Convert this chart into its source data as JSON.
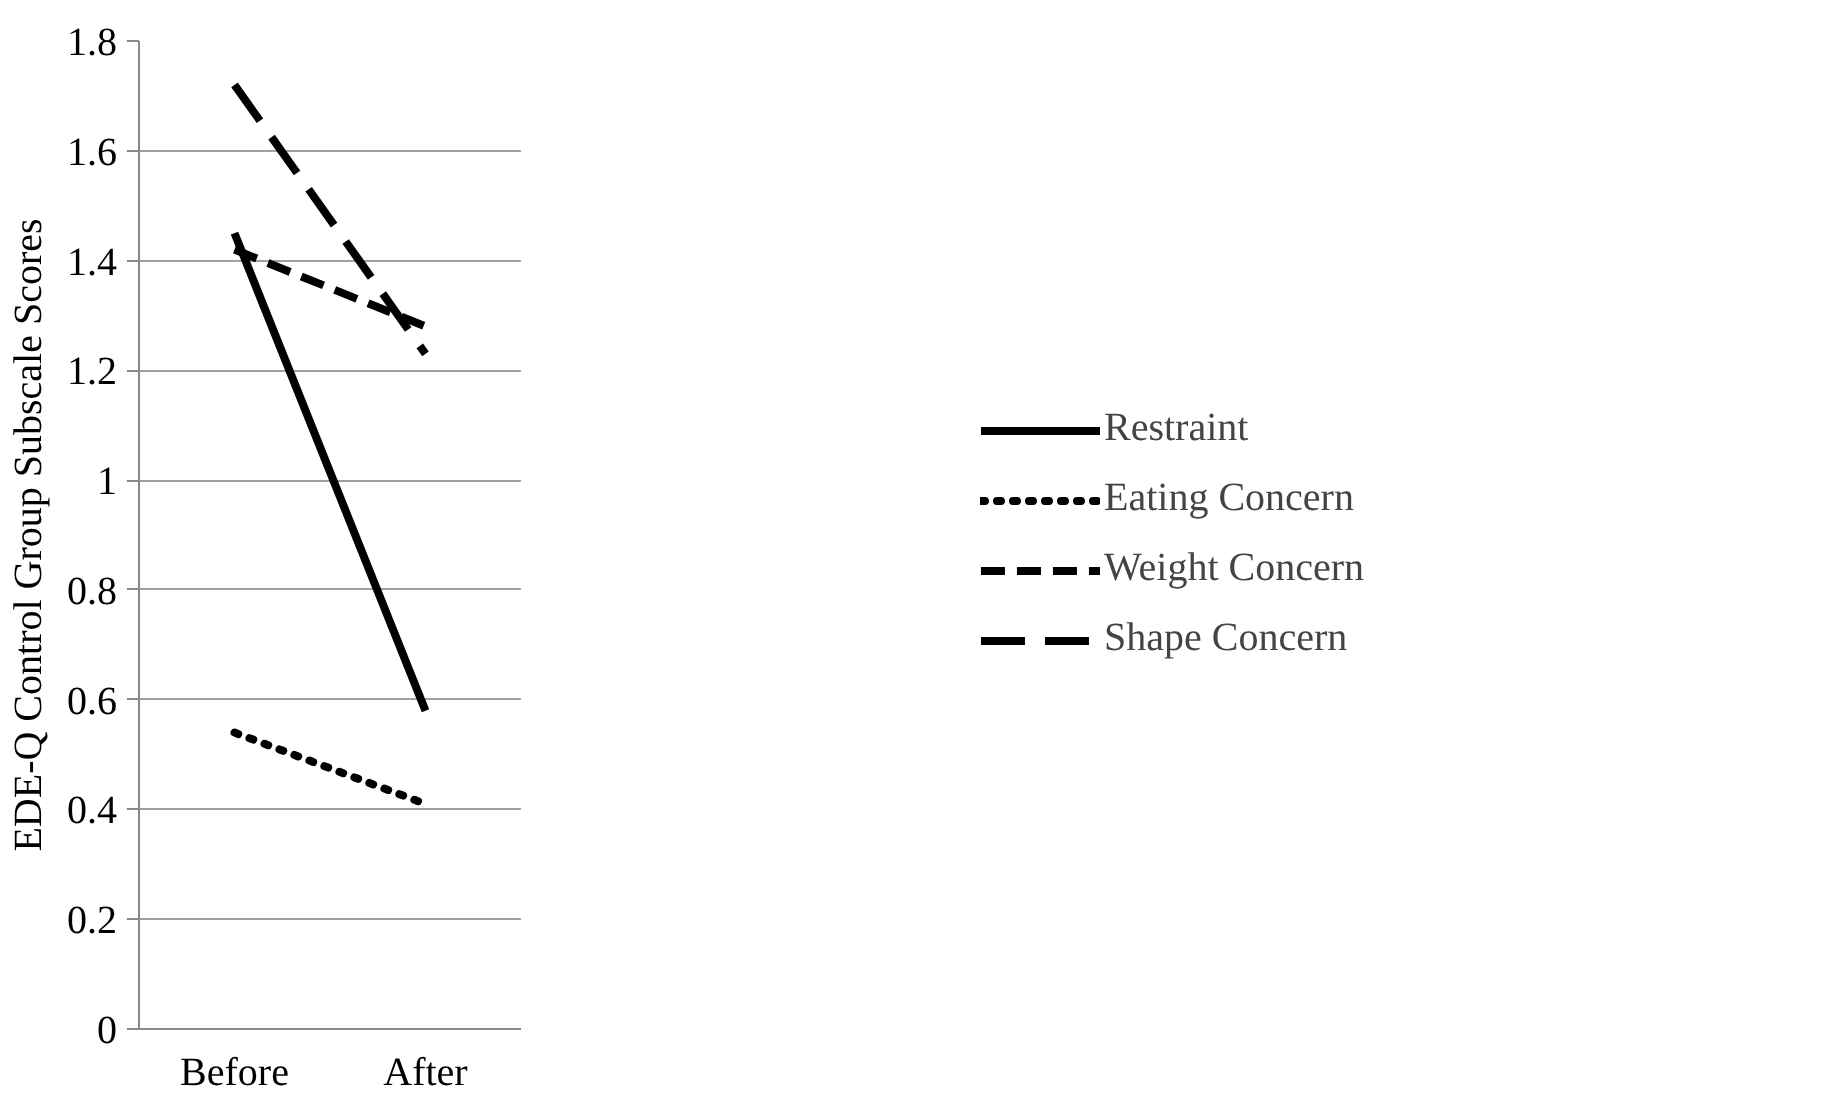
{
  "chart_data": {
    "type": "line",
    "ylabel": "EDE-Q Control Group Subscale Scores",
    "categories": [
      "Before",
      "After"
    ],
    "series": [
      {
        "name": "Restraint",
        "color": "#000000",
        "values": [
          1.45,
          0.58
        ],
        "line_style": "solid"
      },
      {
        "name": "Eating Concern",
        "color": "#000000",
        "values": [
          0.54,
          0.41
        ],
        "line_style": "dotted"
      },
      {
        "name": "Weight Concern",
        "color": "#000000",
        "values": [
          1.42,
          1.28
        ],
        "line_style": "dashed"
      },
      {
        "name": "Shape Concern",
        "color": "#000000",
        "values": [
          1.72,
          1.23
        ],
        "line_style": "dashed"
      }
    ],
    "ylim": [
      0,
      1.8
    ],
    "yticks": [
      0,
      0.2,
      0.4,
      0.6,
      0.8,
      1,
      1.2,
      1.4,
      1.6,
      1.8
    ],
    "grid": "y",
    "legend": "right",
    "marker": "none"
  }
}
